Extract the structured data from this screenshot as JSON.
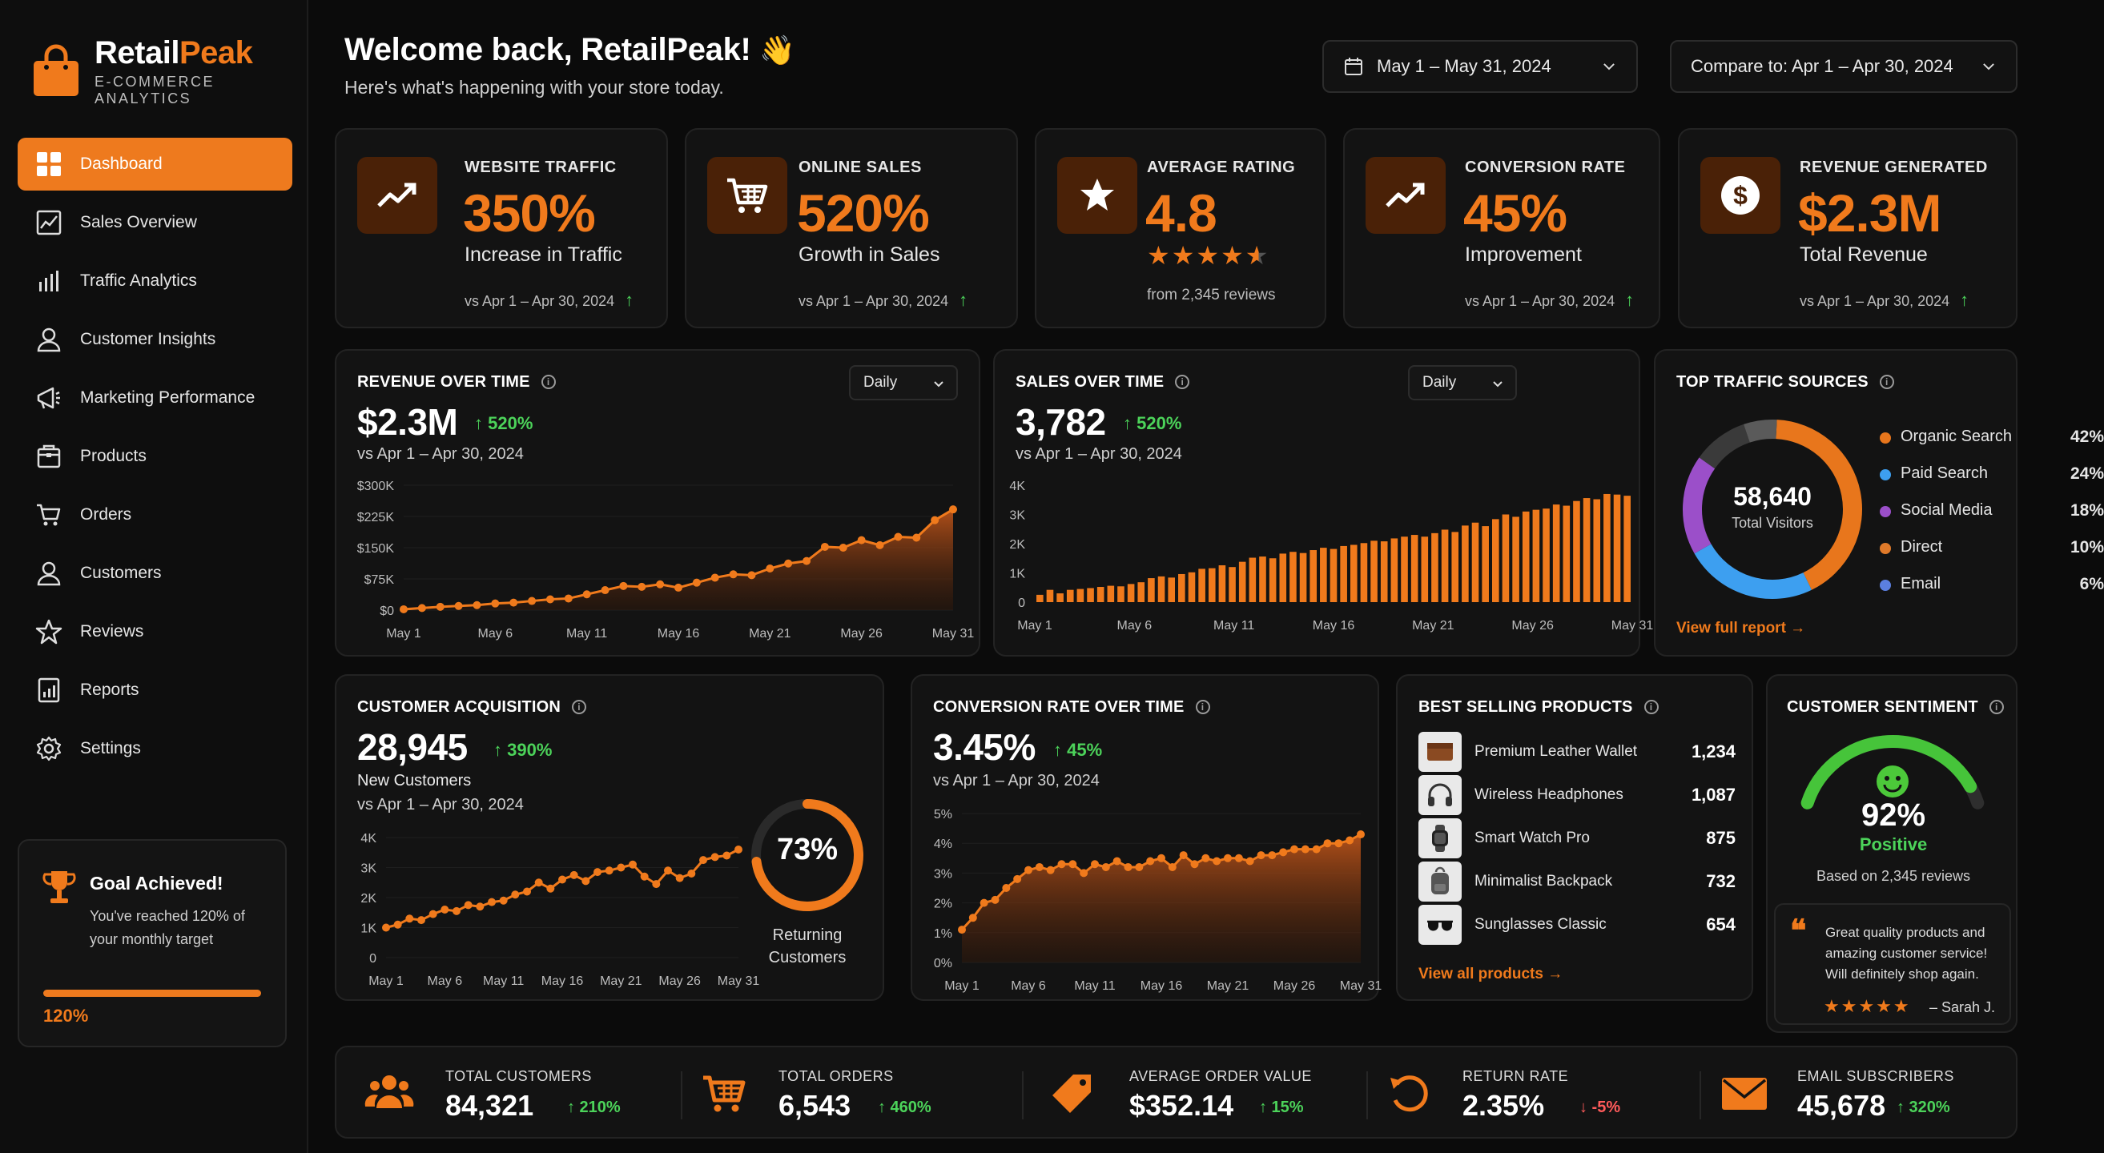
{
  "brand": {
    "name_part1": "Retail",
    "name_part2": "Peak",
    "subtitle": "E-COMMERCE ANALYTICS",
    "accent": "#f07a1c"
  },
  "nav": {
    "items": [
      {
        "label": "Dashboard",
        "icon": "dashboard-grid-icon",
        "active": true
      },
      {
        "label": "Sales Overview",
        "icon": "line-chart-icon"
      },
      {
        "label": "Traffic Analytics",
        "icon": "bar-chart-icon"
      },
      {
        "label": "Customer Insights",
        "icon": "user-icon"
      },
      {
        "label": "Marketing Performance",
        "icon": "megaphone-icon"
      },
      {
        "label": "Products",
        "icon": "box-icon"
      },
      {
        "label": "Orders",
        "icon": "cart-icon"
      },
      {
        "label": "Customers",
        "icon": "user-icon"
      },
      {
        "label": "Reviews",
        "icon": "star-icon"
      },
      {
        "label": "Reports",
        "icon": "report-icon"
      },
      {
        "label": "Settings",
        "icon": "gear-icon"
      }
    ]
  },
  "goal": {
    "title": "Goal Achieved!",
    "text": "You've reached 120% of your monthly target",
    "percent": "120%",
    "progress": 1.0
  },
  "header": {
    "welcome": "Welcome back, RetailPeak!",
    "wave": "👋",
    "subtitle": "Here's what's happening with your store today.",
    "date_range": "May 1 – May 31, 2024",
    "compare": "Compare to: Apr 1 – Apr 30, 2024"
  },
  "kpis": [
    {
      "label": "WEBSITE TRAFFIC",
      "value": "350%",
      "desc": "Increase in Traffic",
      "cmp": "vs Apr 1 – Apr 30, 2024",
      "icon": "trend-up-icon"
    },
    {
      "label": "ONLINE SALES",
      "value": "520%",
      "desc": "Growth in Sales",
      "cmp": "vs Apr 1 – Apr 30, 2024",
      "icon": "cart-icon"
    },
    {
      "label": "AVERAGE RATING",
      "value": "4.8",
      "stars": "★★★★",
      "cmp": "from 2,345 reviews",
      "icon": "star-icon",
      "rating": 4.8
    },
    {
      "label": "CONVERSION RATE",
      "value": "45%",
      "desc": "Improvement",
      "cmp": "vs Apr 1 – Apr 30, 2024",
      "icon": "trend-up-icon"
    },
    {
      "label": "REVENUE GENERATED",
      "value": "$2.3M",
      "desc": "Total Revenue",
      "cmp": "vs Apr 1 – Apr 30, 2024",
      "icon": "dollar-icon"
    }
  ],
  "revenue": {
    "title": "REVENUE OVER TIME",
    "value": "$2.3M",
    "change": "↑ 520%",
    "cmp": "vs Apr 1 – Apr 30, 2024",
    "period": "Daily",
    "chart_data": {
      "type": "area",
      "y_ticks": [
        "$300K",
        "$225K",
        "$150K",
        "$75K",
        "$0"
      ],
      "ylim": [
        0,
        300000
      ],
      "x_ticks": [
        "May 1",
        "May 6",
        "May 11",
        "May 16",
        "May 21",
        "May 26",
        "May 31"
      ],
      "x": [
        1,
        2,
        3,
        4,
        5,
        6,
        7,
        8,
        9,
        10,
        11,
        12,
        13,
        14,
        15,
        16,
        17,
        18,
        19,
        20,
        21,
        22,
        23,
        24,
        25,
        26,
        27,
        28,
        29,
        30,
        31
      ],
      "values": [
        2000,
        5000,
        8000,
        10000,
        12000,
        16000,
        18000,
        22000,
        26000,
        28000,
        38000,
        48000,
        58000,
        56000,
        62000,
        54000,
        66000,
        78000,
        86000,
        84000,
        100000,
        112000,
        118000,
        152000,
        150000,
        168000,
        156000,
        176000,
        174000,
        216000,
        242000
      ]
    }
  },
  "sales": {
    "title": "SALES OVER TIME",
    "value": "3,782",
    "change": "↑ 520%",
    "cmp": "vs Apr 1 – Apr 30, 2024",
    "period": "Daily",
    "chart_data": {
      "type": "bar",
      "y_ticks": [
        "4K",
        "3K",
        "2K",
        "1K",
        "0"
      ],
      "ylim": [
        0,
        4000
      ],
      "x_ticks": [
        "May 1",
        "May 6",
        "May 11",
        "May 16",
        "May 21",
        "May 26",
        "May 31"
      ],
      "x": [
        1,
        2,
        3,
        4,
        5,
        6,
        7,
        8,
        9,
        10,
        11,
        12,
        13,
        14,
        15,
        16,
        17,
        18,
        19,
        20,
        21,
        22,
        23,
        24,
        25,
        26,
        27,
        28,
        29,
        30,
        31,
        32,
        33,
        34,
        35,
        36,
        37,
        38,
        39,
        40,
        41,
        42,
        43,
        44,
        45,
        46,
        47,
        48,
        49,
        50,
        51,
        52,
        53,
        54,
        55,
        56,
        57,
        58,
        59
      ],
      "values": [
        250,
        420,
        300,
        420,
        450,
        480,
        520,
        560,
        540,
        620,
        680,
        820,
        880,
        840,
        960,
        1020,
        1140,
        1160,
        1260,
        1200,
        1380,
        1520,
        1560,
        1500,
        1660,
        1720,
        1680,
        1780,
        1860,
        1820,
        1920,
        1960,
        2020,
        2100,
        2080,
        2180,
        2240,
        2300,
        2240,
        2360,
        2480,
        2400,
        2620,
        2720,
        2600,
        2840,
        3000,
        2920,
        3100,
        3160,
        3200,
        3340,
        3300,
        3460,
        3560,
        3520,
        3700,
        3680,
        3640
      ]
    }
  },
  "traffic": {
    "title": "TOP TRAFFIC SOURCES",
    "total": "58,640",
    "total_label": "Total Visitors",
    "link": "View full report →",
    "chart_data": {
      "type": "pie",
      "labels": [
        "Organic Search",
        "Paid Search",
        "Social Media",
        "Direct",
        "Email"
      ],
      "values": [
        42,
        24,
        18,
        10,
        6
      ],
      "display": [
        "42%",
        "24%",
        "18%",
        "10%",
        "6%"
      ],
      "colors": [
        "#e8761c",
        "#3d9ff0",
        "#9b4fc9",
        "#e07a2a",
        "#5b7fe0"
      ],
      "ring_colors": [
        "#e8761c",
        "#3d9ff0",
        "#9b4fc9",
        "#3a3a3a",
        "#5a5a5a"
      ]
    }
  },
  "acquisition": {
    "title": "CUSTOMER ACQUISITION",
    "value": "28,945",
    "change": "↑ 390%",
    "desc": "New Customers",
    "cmp": "vs Apr 1 – Apr 30, 2024",
    "returning_pct": "73%",
    "returning_label": "Returning Customers",
    "returning_value": 0.73,
    "chart_data": {
      "type": "line",
      "y_ticks": [
        "4K",
        "3K",
        "2K",
        "1K",
        "0"
      ],
      "ylim": [
        0,
        4000
      ],
      "x_ticks": [
        "May 1",
        "May 6",
        "May 11",
        "May 16",
        "May 21",
        "May 26",
        "May 31"
      ],
      "x": [
        1,
        2,
        3,
        4,
        5,
        6,
        7,
        8,
        9,
        10,
        11,
        12,
        13,
        14,
        15,
        16,
        17,
        18,
        19,
        20,
        21,
        22,
        23,
        24,
        25,
        26,
        27,
        28,
        29,
        30,
        31
      ],
      "values": [
        1000,
        1100,
        1300,
        1250,
        1450,
        1600,
        1550,
        1750,
        1700,
        1850,
        1900,
        2100,
        2200,
        2500,
        2300,
        2600,
        2750,
        2550,
        2850,
        2900,
        3000,
        3100,
        2700,
        2450,
        2900,
        2650,
        2800,
        3250,
        3350,
        3400,
        3600
      ]
    }
  },
  "conversion": {
    "title": "CONVERSION RATE OVER TIME",
    "value": "3.45%",
    "change": "↑ 45%",
    "cmp": "vs Apr 1 – Apr 30, 2024",
    "chart_data": {
      "type": "area",
      "y_ticks": [
        "5%",
        "4%",
        "3%",
        "2%",
        "1%",
        "0%"
      ],
      "ylim": [
        0,
        5
      ],
      "x_ticks": [
        "May 1",
        "May 6",
        "May 11",
        "May 16",
        "May 21",
        "May 26",
        "May 31"
      ],
      "x": [
        1,
        2,
        3,
        4,
        5,
        6,
        7,
        8,
        9,
        10,
        11,
        12,
        13,
        14,
        15,
        16,
        17,
        18,
        19,
        20,
        21,
        22,
        23,
        24,
        25,
        26,
        27,
        28,
        29,
        30,
        31,
        32,
        33,
        34,
        35,
        36,
        37
      ],
      "values": [
        1.1,
        1.5,
        2.0,
        2.1,
        2.5,
        2.8,
        3.1,
        3.2,
        3.1,
        3.3,
        3.3,
        3.0,
        3.3,
        3.2,
        3.4,
        3.2,
        3.2,
        3.4,
        3.5,
        3.2,
        3.6,
        3.3,
        3.5,
        3.4,
        3.5,
        3.5,
        3.4,
        3.6,
        3.6,
        3.7,
        3.8,
        3.8,
        3.8,
        4.0,
        4.0,
        4.1,
        4.3
      ]
    }
  },
  "products": {
    "title": "BEST SELLING PRODUCTS",
    "link": "View all products →",
    "items": [
      {
        "name": "Premium Leather Wallet",
        "count": "1,234",
        "icon": "wallet-icon"
      },
      {
        "name": "Wireless Headphones",
        "count": "1,087",
        "icon": "headphones-icon"
      },
      {
        "name": "Smart Watch Pro",
        "count": "875",
        "icon": "watch-icon"
      },
      {
        "name": "Minimalist Backpack",
        "count": "732",
        "icon": "backpack-icon"
      },
      {
        "name": "Sunglasses Classic",
        "count": "654",
        "icon": "sunglasses-icon"
      }
    ]
  },
  "sentiment": {
    "title": "CUSTOMER SENTIMENT",
    "pct": "92%",
    "label": "Positive",
    "based": "Based on 2,345 reviews",
    "value": 0.92,
    "quote_mark": "❝",
    "quote": "Great quality products and amazing customer service! Will definitely shop again.",
    "stars": "★★★★★",
    "author": "– Sarah J."
  },
  "bottom": [
    {
      "label": "TOTAL CUSTOMERS",
      "value": "84,321",
      "change": "↑ 210%",
      "dir": "up",
      "icon": "users-icon"
    },
    {
      "label": "TOTAL ORDERS",
      "value": "6,543",
      "change": "↑ 460%",
      "dir": "up",
      "icon": "cart-icon"
    },
    {
      "label": "AVERAGE ORDER VALUE",
      "value": "$352.14",
      "change": "↑ 15%",
      "dir": "up",
      "icon": "tag-icon"
    },
    {
      "label": "RETURN RATE",
      "value": "2.35%",
      "change": "↓ -5%",
      "dir": "down",
      "icon": "return-icon"
    },
    {
      "label": "EMAIL SUBSCRIBERS",
      "value": "45,678",
      "change": "↑ 320%",
      "dir": "up",
      "icon": "mail-icon"
    }
  ]
}
